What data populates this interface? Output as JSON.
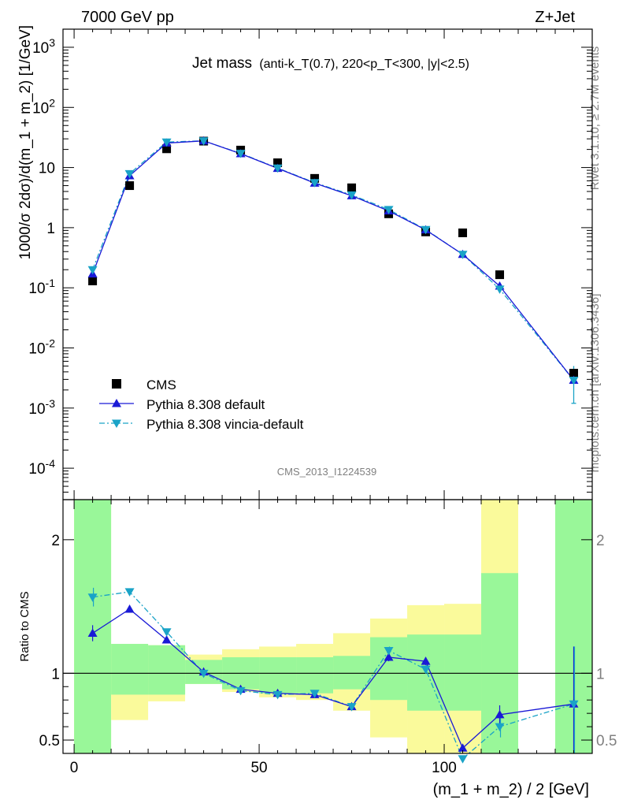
{
  "header": {
    "energy_label": "7000 GeV pp",
    "process_label": "Z+Jet"
  },
  "side_labels": {
    "rivet": "Rivet 3.1.10, ≥ 2.7M events",
    "mcplots": "mcplots.cern.ch [arXiv:1306.3436]"
  },
  "analysis_id": "CMS_2013_I1224539",
  "colors": {
    "cms": "#000000",
    "default": "#1a1ad6",
    "vincia": "#1aa3c7",
    "band_inner": "#99f799",
    "band_outer": "#fafa9b"
  },
  "chart_data": [
    {
      "type": "line",
      "panel": "main",
      "title_main": "Jet mass",
      "title_sub": "(anti-k_T(0.7), 220<p_T<300, |y|<2.5)",
      "ylabel": "1000/σ 2dσ)/d(m_1 + m_2) [1/GeV]",
      "xlabel": "",
      "xlim": [
        -3,
        140
      ],
      "ylim": [
        3e-05,
        2000
      ],
      "yscale": "log",
      "y_ticks": [
        "10^-4",
        "10^-3",
        "10^-2",
        "10^-1",
        "1",
        "10",
        "10^2",
        "10^3"
      ],
      "legend_position": "lower-left",
      "x": [
        5,
        15,
        25,
        35,
        45,
        55,
        65,
        75,
        85,
        95,
        105,
        115,
        135
      ],
      "series": [
        {
          "name": "CMS",
          "marker": "square",
          "values": [
            0.13,
            5.0,
            20.5,
            27.5,
            19.5,
            12.0,
            6.6,
            4.6,
            1.7,
            0.85,
            0.82,
            0.165,
            0.0038
          ]
        },
        {
          "name": "Pythia 8.308 default",
          "marker": "triangle-up",
          "values": [
            0.17,
            7.3,
            25.5,
            27.8,
            17.0,
            9.7,
            5.5,
            3.4,
            1.9,
            0.92,
            0.36,
            0.107,
            0.0029
          ]
        },
        {
          "name": "Pythia 8.308 vincia-default",
          "marker": "triangle-down",
          "values": [
            0.2,
            7.9,
            26.5,
            27.8,
            17.2,
            9.8,
            5.6,
            3.5,
            2.0,
            0.93,
            0.36,
            0.095,
            0.0029
          ]
        }
      ]
    },
    {
      "type": "line",
      "panel": "ratio",
      "ylabel": "Ratio to CMS",
      "xlabel": "(m_1 + m_2) / 2 [GeV]",
      "xlim": [
        -3,
        140
      ],
      "ylim": [
        0.4,
        2.3
      ],
      "x_ticks": [
        "0",
        "50",
        "100"
      ],
      "y_ticks": [
        "0.5",
        "1",
        "2"
      ],
      "x": [
        5,
        15,
        25,
        35,
        45,
        55,
        65,
        75,
        85,
        95,
        105,
        115,
        135
      ],
      "bands": [
        {
          "x0": 0,
          "x1": 10,
          "inner": [
            0.38,
            2.3
          ],
          "outer": [
            0.38,
            2.3
          ]
        },
        {
          "x0": 10,
          "x1": 20,
          "inner": [
            0.84,
            1.22
          ],
          "outer": [
            0.65,
            1.22
          ]
        },
        {
          "x0": 20,
          "x1": 30,
          "inner": [
            0.84,
            1.21
          ],
          "outer": [
            0.79,
            1.21
          ]
        },
        {
          "x0": 30,
          "x1": 40,
          "inner": [
            0.92,
            1.1
          ],
          "outer": [
            0.92,
            1.14
          ]
        },
        {
          "x0": 40,
          "x1": 50,
          "inner": [
            0.88,
            1.12
          ],
          "outer": [
            0.86,
            1.18
          ]
        },
        {
          "x0": 50,
          "x1": 60,
          "inner": [
            0.85,
            1.12
          ],
          "outer": [
            0.82,
            1.2
          ]
        },
        {
          "x0": 60,
          "x1": 70,
          "inner": [
            0.85,
            1.12
          ],
          "outer": [
            0.8,
            1.22
          ]
        },
        {
          "x0": 70,
          "x1": 80,
          "inner": [
            0.88,
            1.13
          ],
          "outer": [
            0.72,
            1.3
          ]
        },
        {
          "x0": 80,
          "x1": 90,
          "inner": [
            0.8,
            1.27
          ],
          "outer": [
            0.52,
            1.41
          ]
        },
        {
          "x0": 90,
          "x1": 100,
          "inner": [
            0.72,
            1.29
          ],
          "outer": [
            0.38,
            1.51
          ]
        },
        {
          "x0": 100,
          "x1": 110,
          "inner": [
            0.72,
            1.29
          ],
          "outer": [
            0.38,
            1.52
          ]
        },
        {
          "x0": 110,
          "x1": 120,
          "inner": [
            0.38,
            1.75
          ],
          "outer": [
            0.38,
            2.3
          ]
        },
        {
          "x0": 130,
          "x1": 140,
          "inner": [
            0.38,
            2.3
          ],
          "outer": [
            0.38,
            2.3
          ]
        }
      ],
      "series": [
        {
          "name": "Pythia 8.308 default",
          "values": [
            1.3,
            1.48,
            1.25,
            1.01,
            0.88,
            0.85,
            0.84,
            0.75,
            1.12,
            1.09,
            0.44,
            0.69,
            0.77
          ]
        },
        {
          "name": "Pythia 8.308 vincia-default",
          "values": [
            1.57,
            1.61,
            1.31,
            1.0,
            0.87,
            0.84,
            0.85,
            0.75,
            1.17,
            1.03,
            0.36,
            0.6,
            0.77
          ]
        }
      ]
    }
  ]
}
